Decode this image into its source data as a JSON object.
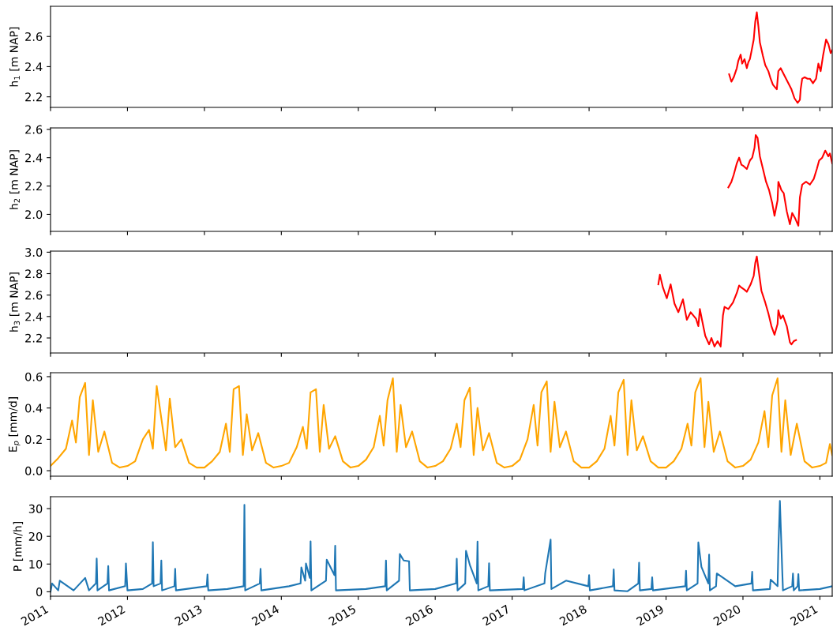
{
  "chart_data": [
    {
      "type": "line",
      "ylabel": "h$_{1}$ [m NAP]",
      "xlim": [
        2011.0,
        2021.16
      ],
      "xticks": [
        2011,
        2012,
        2013,
        2014,
        2015,
        2016,
        2017,
        2018,
        2019,
        2020,
        2021
      ],
      "ylim": [
        2.13,
        2.8
      ],
      "yticks": [
        2.2,
        2.4,
        2.6
      ],
      "tick_labels": "y",
      "grid": false,
      "marker": "none",
      "line_style": "solid",
      "series": [
        {
          "color": "#ff0000",
          "x": [
            2019.82,
            2019.85,
            2019.88,
            2019.92,
            2019.94,
            2019.97,
            2019.99,
            2020.02,
            2020.05,
            2020.07,
            2020.09,
            2020.11,
            2020.14,
            2020.16,
            2020.18,
            2020.2,
            2020.22,
            2020.26,
            2020.29,
            2020.33,
            2020.36,
            2020.39,
            2020.44,
            2020.46,
            2020.49,
            2020.53,
            2020.58,
            2020.63,
            2020.67,
            2020.71,
            2020.74,
            2020.75,
            2020.77,
            2020.8,
            2020.84,
            2020.87,
            2020.91,
            2020.95,
            2020.98,
            2021.01,
            2021.04,
            2021.08,
            2021.11,
            2021.14,
            2021.16
          ],
          "values": [
            2.35,
            2.3,
            2.33,
            2.39,
            2.44,
            2.48,
            2.42,
            2.45,
            2.39,
            2.43,
            2.45,
            2.5,
            2.58,
            2.7,
            2.76,
            2.67,
            2.56,
            2.47,
            2.41,
            2.37,
            2.32,
            2.28,
            2.25,
            2.37,
            2.39,
            2.35,
            2.3,
            2.25,
            2.19,
            2.16,
            2.18,
            2.25,
            2.32,
            2.33,
            2.32,
            2.32,
            2.29,
            2.32,
            2.42,
            2.37,
            2.47,
            2.58,
            2.55,
            2.49,
            2.51
          ]
        }
      ]
    },
    {
      "type": "line",
      "ylabel": "h$_{2}$ [m NAP]",
      "xlim": [
        2011.0,
        2021.16
      ],
      "xticks": [
        2011,
        2012,
        2013,
        2014,
        2015,
        2016,
        2017,
        2018,
        2019,
        2020,
        2021
      ],
      "ylim": [
        1.88,
        2.61
      ],
      "yticks": [
        {
          "value": 2,
          "label": "2.0"
        },
        2.2,
        2.4,
        2.6
      ],
      "tick_labels": "y",
      "grid": false,
      "marker": "none",
      "line_style": "solid",
      "series": [
        {
          "color": "#ff0000",
          "x": [
            2019.81,
            2019.85,
            2019.88,
            2019.92,
            2019.95,
            2019.98,
            2020.01,
            2020.05,
            2020.09,
            2020.12,
            2020.15,
            2020.166,
            2020.19,
            2020.22,
            2020.26,
            2020.3,
            2020.34,
            2020.38,
            2020.41,
            2020.45,
            2020.46,
            2020.5,
            2020.53,
            2020.57,
            2020.61,
            2020.64,
            2020.68,
            2020.72,
            2020.74,
            2020.77,
            2020.82,
            2020.87,
            2020.92,
            2020.96,
            2020.99,
            2021.03,
            2021.07,
            2021.11,
            2021.13,
            2021.16
          ],
          "values": [
            2.19,
            2.23,
            2.28,
            2.36,
            2.4,
            2.35,
            2.34,
            2.32,
            2.38,
            2.4,
            2.47,
            2.56,
            2.54,
            2.41,
            2.32,
            2.23,
            2.17,
            2.08,
            1.99,
            2.1,
            2.23,
            2.17,
            2.15,
            2.02,
            1.93,
            2.01,
            1.97,
            1.92,
            2.12,
            2.21,
            2.23,
            2.21,
            2.25,
            2.32,
            2.38,
            2.4,
            2.45,
            2.41,
            2.43,
            2.36
          ]
        }
      ]
    },
    {
      "type": "line",
      "ylabel": "h$_{3}$ [m NAP]",
      "xlim": [
        2011.0,
        2021.16
      ],
      "xticks": [
        2011,
        2012,
        2013,
        2014,
        2015,
        2016,
        2017,
        2018,
        2019,
        2020,
        2021
      ],
      "ylim": [
        2.06,
        3.01
      ],
      "yticks": [
        2.2,
        2.4,
        2.6,
        2.8,
        {
          "value": 3,
          "label": "3.0"
        }
      ],
      "tick_labels": "y",
      "grid": false,
      "marker": "none",
      "line_style": "solid",
      "series": [
        {
          "color": "#ff0000",
          "x": [
            2018.9,
            2018.92,
            2018.96,
            2019.01,
            2019.06,
            2019.11,
            2019.16,
            2019.22,
            2019.27,
            2019.32,
            2019.39,
            2019.42,
            2019.44,
            2019.47,
            2019.51,
            2019.56,
            2019.59,
            2019.63,
            2019.67,
            2019.71,
            2019.74,
            2019.76,
            2019.81,
            2019.87,
            2019.92,
            2019.95,
            2019.98,
            2020.02,
            2020.05,
            2020.1,
            2020.14,
            2020.16,
            2020.18,
            2020.21,
            2020.24,
            2020.29,
            2020.33,
            2020.37,
            2020.41,
            2020.45,
            2020.46,
            2020.49,
            2020.52,
            2020.57,
            2020.61,
            2020.63,
            2020.66,
            2020.69
          ],
          "values": [
            2.7,
            2.79,
            2.67,
            2.57,
            2.7,
            2.52,
            2.44,
            2.56,
            2.37,
            2.44,
            2.38,
            2.31,
            2.47,
            2.36,
            2.22,
            2.14,
            2.2,
            2.12,
            2.17,
            2.12,
            2.41,
            2.49,
            2.47,
            2.53,
            2.62,
            2.69,
            2.67,
            2.65,
            2.63,
            2.7,
            2.78,
            2.9,
            2.96,
            2.8,
            2.64,
            2.53,
            2.43,
            2.31,
            2.23,
            2.33,
            2.46,
            2.38,
            2.41,
            2.31,
            2.16,
            2.14,
            2.17,
            2.18
          ]
        }
      ]
    },
    {
      "type": "line",
      "ylabel": "E$_{p}$ [mm/d]",
      "xlim": [
        2011.0,
        2021.16
      ],
      "xticks": [
        2011,
        2012,
        2013,
        2014,
        2015,
        2016,
        2017,
        2018,
        2019,
        2020,
        2021
      ],
      "ylim": [
        -0.035,
        0.625
      ],
      "yticks": [
        {
          "value": 0,
          "label": "0.0"
        },
        0.2,
        0.4,
        0.6
      ],
      "tick_labels": "y",
      "grid": false,
      "marker": "none",
      "line_style": "solid",
      "series": [
        {
          "color": "#ffa500",
          "x": [
            2011.0,
            2011.1,
            2011.2,
            2011.28,
            2011.33,
            2011.38,
            2011.45,
            2011.5,
            2011.55,
            2011.62,
            2011.7,
            2011.8,
            2011.9,
            2012.0,
            2012.1,
            2012.2,
            2012.28,
            2012.33,
            2012.38,
            2012.45,
            2012.5,
            2012.55,
            2012.62,
            2012.7,
            2012.8,
            2012.9,
            2013.0,
            2013.1,
            2013.2,
            2013.28,
            2013.33,
            2013.38,
            2013.45,
            2013.5,
            2013.55,
            2013.62,
            2013.7,
            2013.8,
            2013.9,
            2014.0,
            2014.1,
            2014.2,
            2014.28,
            2014.33,
            2014.38,
            2014.45,
            2014.5,
            2014.55,
            2014.62,
            2014.7,
            2014.8,
            2014.9,
            2015.0,
            2015.1,
            2015.2,
            2015.28,
            2015.33,
            2015.38,
            2015.45,
            2015.5,
            2015.55,
            2015.62,
            2015.7,
            2015.8,
            2015.9,
            2016.0,
            2016.1,
            2016.2,
            2016.28,
            2016.33,
            2016.38,
            2016.45,
            2016.5,
            2016.55,
            2016.62,
            2016.7,
            2016.8,
            2016.9,
            2017.0,
            2017.1,
            2017.2,
            2017.28,
            2017.33,
            2017.38,
            2017.45,
            2017.5,
            2017.55,
            2017.62,
            2017.7,
            2017.8,
            2017.9,
            2018.0,
            2018.1,
            2018.2,
            2018.28,
            2018.33,
            2018.38,
            2018.45,
            2018.5,
            2018.55,
            2018.62,
            2018.7,
            2018.8,
            2018.9,
            2019.0,
            2019.1,
            2019.2,
            2019.28,
            2019.33,
            2019.38,
            2019.45,
            2019.5,
            2019.55,
            2019.62,
            2019.7,
            2019.8,
            2019.9,
            2020.0,
            2020.1,
            2020.2,
            2020.28,
            2020.33,
            2020.38,
            2020.45,
            2020.5,
            2020.55,
            2020.62,
            2020.7,
            2020.8,
            2020.9,
            2021.0,
            2021.08,
            2021.13,
            2021.16
          ],
          "values": [
            0.03,
            0.08,
            0.14,
            0.32,
            0.18,
            0.47,
            0.56,
            0.1,
            0.45,
            0.12,
            0.25,
            0.05,
            0.02,
            0.03,
            0.06,
            0.2,
            0.26,
            0.14,
            0.54,
            0.3,
            0.13,
            0.46,
            0.15,
            0.2,
            0.05,
            0.02,
            0.02,
            0.06,
            0.12,
            0.3,
            0.12,
            0.52,
            0.54,
            0.1,
            0.36,
            0.13,
            0.24,
            0.05,
            0.02,
            0.03,
            0.05,
            0.15,
            0.28,
            0.14,
            0.5,
            0.52,
            0.12,
            0.42,
            0.14,
            0.22,
            0.06,
            0.02,
            0.03,
            0.07,
            0.15,
            0.35,
            0.16,
            0.45,
            0.59,
            0.12,
            0.42,
            0.15,
            0.25,
            0.06,
            0.02,
            0.03,
            0.06,
            0.14,
            0.3,
            0.15,
            0.45,
            0.53,
            0.1,
            0.4,
            0.13,
            0.24,
            0.05,
            0.02,
            0.03,
            0.07,
            0.2,
            0.42,
            0.16,
            0.5,
            0.57,
            0.12,
            0.44,
            0.15,
            0.25,
            0.06,
            0.02,
            0.02,
            0.06,
            0.14,
            0.35,
            0.16,
            0.5,
            0.58,
            0.1,
            0.45,
            0.13,
            0.22,
            0.06,
            0.02,
            0.02,
            0.06,
            0.14,
            0.3,
            0.16,
            0.5,
            0.59,
            0.15,
            0.44,
            0.12,
            0.25,
            0.06,
            0.02,
            0.03,
            0.07,
            0.18,
            0.38,
            0.15,
            0.48,
            0.59,
            0.12,
            0.45,
            0.1,
            0.3,
            0.06,
            0.02,
            0.03,
            0.05,
            0.17,
            0.1
          ]
        }
      ]
    },
    {
      "type": "line",
      "ylabel": "P [mm/h]",
      "xlim": [
        2011.0,
        2021.16
      ],
      "xticks": [
        2011,
        2012,
        2013,
        2014,
        2015,
        2016,
        2017,
        2018,
        2019,
        2020,
        2021
      ],
      "ylim": [
        -1.6,
        34.3
      ],
      "yticks": [
        0,
        10,
        20,
        30
      ],
      "grid": false,
      "marker": "none",
      "line_style": "solid",
      "series": [
        {
          "color": "#1f77b4",
          "x": [
            2011.0,
            2011.02,
            2011.1,
            2011.12,
            2011.3,
            2011.45,
            2011.5,
            2011.59,
            2011.6,
            2011.61,
            2011.74,
            2011.75,
            2011.76,
            2011.97,
            2011.98,
            2012.0,
            2012.2,
            2012.32,
            2012.33,
            2012.34,
            2012.43,
            2012.44,
            2012.45,
            2012.61,
            2012.62,
            2012.63,
            2013.03,
            2013.04,
            2013.05,
            2013.3,
            2013.51,
            2013.52,
            2013.53,
            2013.72,
            2013.73,
            2013.74,
            2014.1,
            2014.25,
            2014.26,
            2014.31,
            2014.32,
            2014.37,
            2014.38,
            2014.39,
            2014.58,
            2014.59,
            2014.69,
            2014.7,
            2014.71,
            2015.1,
            2015.35,
            2015.36,
            2015.37,
            2015.53,
            2015.54,
            2015.59,
            2015.66,
            2015.67,
            2016.0,
            2016.27,
            2016.28,
            2016.29,
            2016.39,
            2016.4,
            2016.45,
            2016.54,
            2016.55,
            2016.56,
            2016.69,
            2016.7,
            2016.71,
            2017.14,
            2017.15,
            2017.16,
            2017.42,
            2017.43,
            2017.5,
            2017.51,
            2017.7,
            2017.99,
            2018.0,
            2018.01,
            2018.31,
            2018.32,
            2018.33,
            2018.5,
            2018.64,
            2018.65,
            2018.66,
            2018.81,
            2018.82,
            2018.83,
            2019.25,
            2019.26,
            2019.27,
            2019.41,
            2019.42,
            2019.46,
            2019.55,
            2019.56,
            2019.57,
            2019.65,
            2019.66,
            2019.9,
            2020.11,
            2020.12,
            2020.13,
            2020.35,
            2020.36,
            2020.45,
            2020.46,
            2020.48,
            2020.51,
            2020.52,
            2020.64,
            2020.65,
            2020.66,
            2020.71,
            2020.72,
            2020.73,
            2021.0,
            2021.16
          ],
          "values": [
            0,
            3,
            0.5,
            4,
            0.5,
            5,
            0.5,
            3,
            12.0,
            0.5,
            3,
            9.3,
            0.5,
            2,
            10.2,
            0.5,
            1,
            3,
            17.9,
            2,
            3,
            11.3,
            0.5,
            2,
            8.3,
            0.5,
            2,
            6.2,
            0.5,
            1,
            2,
            31.4,
            0.5,
            3,
            8.3,
            0.5,
            2,
            3,
            8.8,
            4,
            10.2,
            5,
            18.2,
            0.5,
            4,
            11.6,
            6,
            16.6,
            0.5,
            1,
            2,
            11.3,
            0.5,
            4,
            13.6,
            11.3,
            11.0,
            0.5,
            1,
            3,
            11.9,
            0.5,
            3,
            14.8,
            9.7,
            3,
            18.1,
            0.5,
            2,
            10.3,
            0.5,
            1,
            5.2,
            0.5,
            3,
            6.7,
            18.8,
            1,
            4,
            2,
            6.0,
            0.5,
            2,
            8.1,
            0.5,
            0.2,
            3,
            10.5,
            0.5,
            1,
            5.2,
            0.5,
            2,
            7.6,
            0.5,
            3,
            17.8,
            9.0,
            3,
            13.4,
            0.5,
            2,
            6.6,
            2,
            3,
            7.2,
            0.5,
            1,
            4.4,
            2,
            15.0,
            32.8,
            8.0,
            0.5,
            2,
            6.6,
            0.5,
            2,
            6.4,
            0.5,
            1,
            2
          ]
        }
      ]
    }
  ]
}
